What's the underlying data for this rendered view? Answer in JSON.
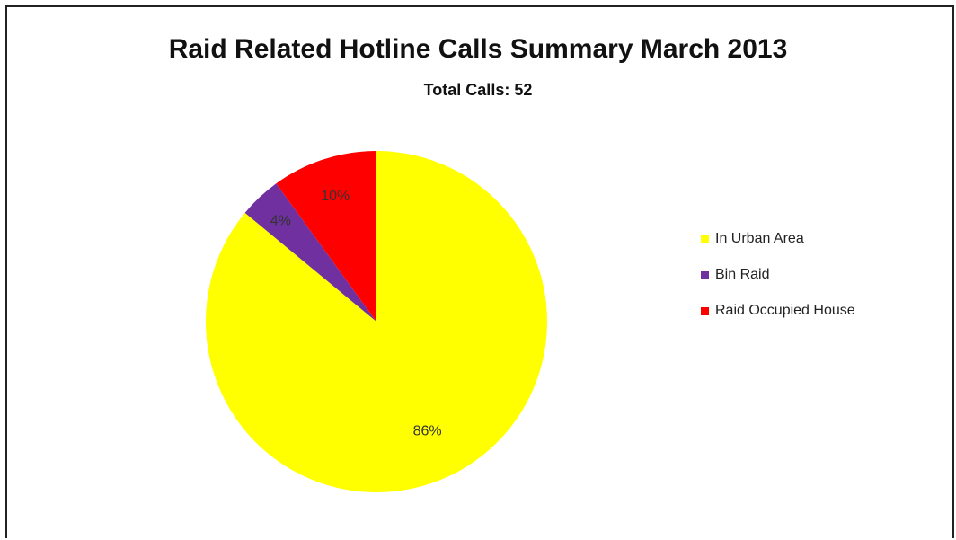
{
  "chart_data": {
    "type": "pie",
    "title": "Raid Related Hotline Calls Summary March 2013",
    "subtitle": "Total Calls: 52",
    "slices": [
      {
        "label": "In Urban Area",
        "value": 86,
        "display": "86%",
        "color": "#FFFF00"
      },
      {
        "label": "Bin Raid",
        "value": 4,
        "display": "4%",
        "color": "#7030A0"
      },
      {
        "label": "Raid Occupied House",
        "value": 10,
        "display": "10%",
        "color": "#FF0000"
      }
    ],
    "legend_position": "right"
  }
}
